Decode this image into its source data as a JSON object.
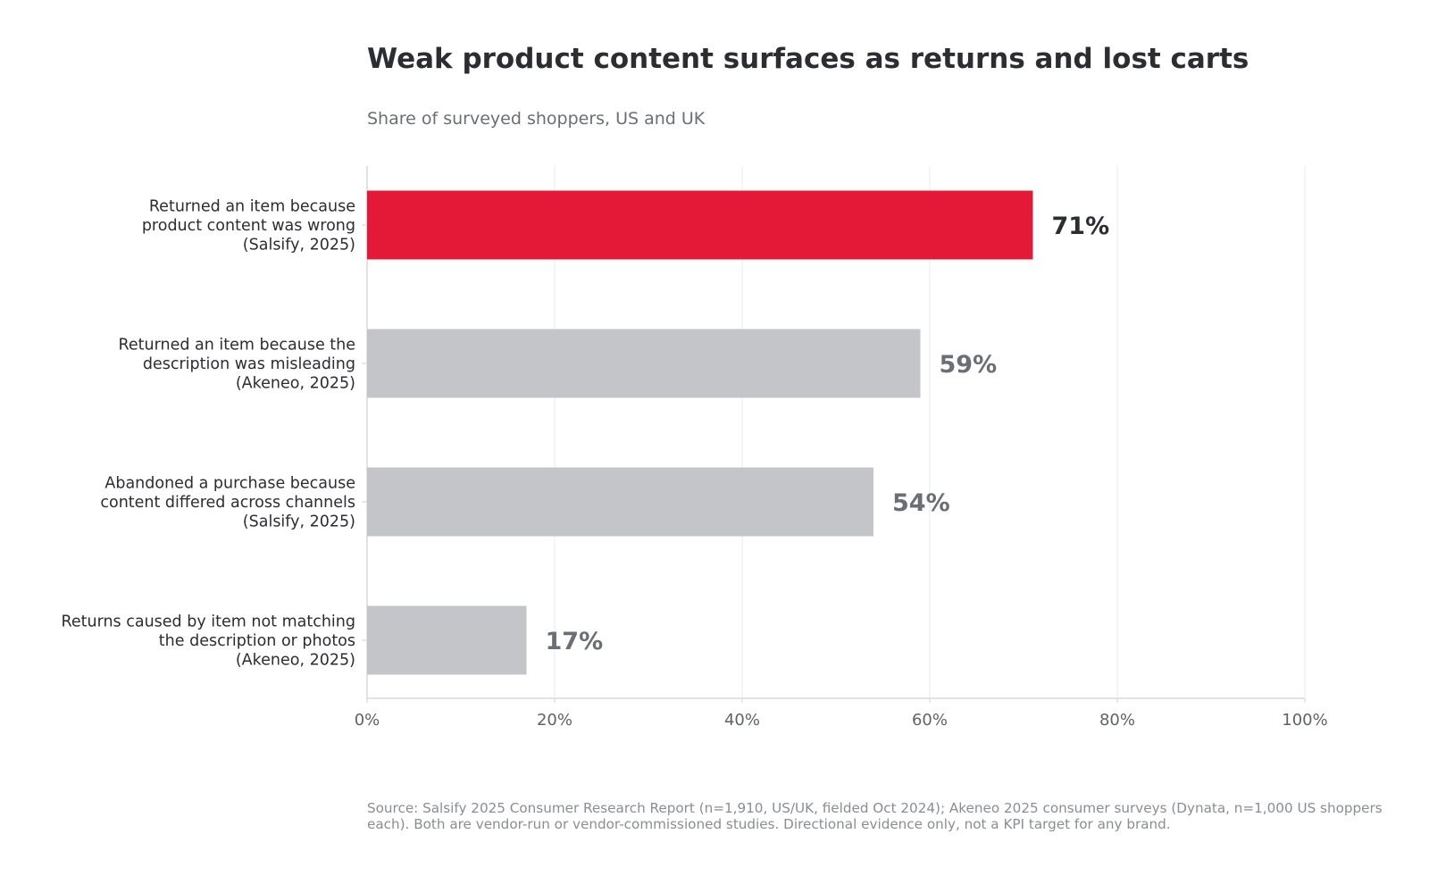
{
  "title": "Weak product content surfaces as returns and lost carts",
  "subtitle": "Share of surveyed shoppers, US and UK",
  "source": "Source: Salsify 2025 Consumer Research Report (n=1,910, US/UK, fielded Oct 2024); Akeneo 2025 consumer surveys (Dynata, n=1,000 US shoppers each). Both are vendor-run or vendor-commissioned studies. Directional evidence only, not a KPI target for any brand.",
  "colors": {
    "highlight": "#e31937",
    "muted": "#c3c5c9",
    "highlight_label": "#2b2d33",
    "muted_label": "#6b6e76",
    "grid": "#ebebeb",
    "axis": "#d9d9d9",
    "tick_text": "#5f6268",
    "category_text": "#2b2d33"
  },
  "chart_data": {
    "type": "bar",
    "orientation": "horizontal",
    "title": "Weak product content surfaces as returns and lost carts",
    "subtitle": "Share of surveyed shoppers, US and UK",
    "categories": [
      [
        "Returned an item because",
        "product content was wrong",
        "(Salsify, 2025)"
      ],
      [
        "Returned an item because the",
        "description was misleading",
        "(Akeneo, 2025)"
      ],
      [
        "Abandoned a purchase because",
        "content differed across channels",
        "(Salsify, 2025)"
      ],
      [
        "Returns caused by item not matching",
        "the description or photos",
        "(Akeneo, 2025)"
      ]
    ],
    "values": [
      71,
      59,
      54,
      17
    ],
    "value_labels": [
      "71%",
      "59%",
      "54%",
      "17%"
    ],
    "highlight_index": 0,
    "xlim": [
      0,
      100
    ],
    "xticks": [
      0,
      20,
      40,
      60,
      80,
      100
    ],
    "xtick_labels": [
      "0%",
      "20%",
      "40%",
      "60%",
      "80%",
      "100%"
    ],
    "xlabel": "",
    "ylabel": "",
    "grid": "vertical",
    "legend": "none"
  }
}
